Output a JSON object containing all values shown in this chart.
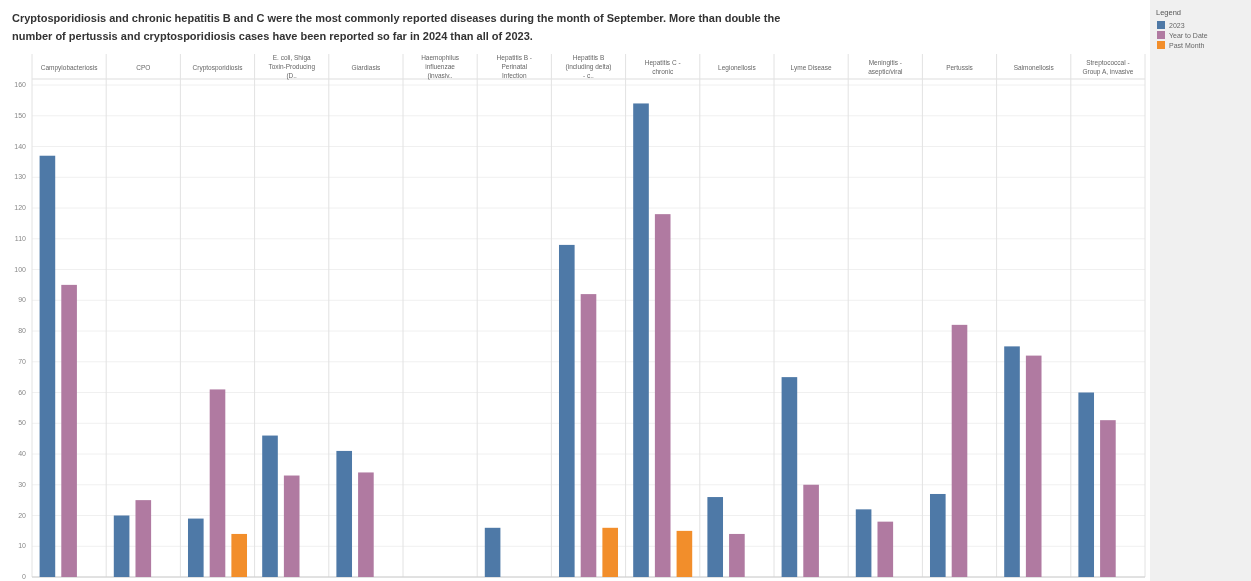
{
  "chart_data": {
    "type": "bar",
    "title": "Cryptosporidiosis and chronic hepatitis B and C were the most commonly reported diseases during the month of September. More than double the number of pertussis and cryptosporidiosis cases have been reported so far in 2024 than all of 2023.",
    "categories": [
      "Campylobacteriosis",
      "CPO",
      "Cryptosporidiosis",
      "E. coli, Shiga Toxin-Producing (D..",
      "Giardiasis",
      "Haemophilus influenzae (invasiv..",
      "Hepatitis B - Perinatal Infection",
      "Hepatitis B (including delta) - c..",
      "Hepatitis C - chronic",
      "Legionellosis",
      "Lyme Disease",
      "Meningitis - aseptic/viral",
      "Pertussis",
      "Salmonellosis",
      "Streptococcal - Group A, invasive"
    ],
    "series": [
      {
        "name": "2023",
        "color": "#4e79a7",
        "values": [
          137,
          20,
          19,
          46,
          41,
          null,
          16,
          108,
          154,
          26,
          65,
          22,
          27,
          75,
          60
        ]
      },
      {
        "name": "Year to Date",
        "color": "#b07aa1",
        "values": [
          95,
          25,
          61,
          33,
          34,
          null,
          null,
          92,
          118,
          14,
          30,
          18,
          82,
          72,
          51
        ]
      },
      {
        "name": "Past Month",
        "color": "#f28e2b",
        "values": [
          null,
          null,
          14,
          null,
          null,
          null,
          null,
          16,
          15,
          null,
          null,
          null,
          null,
          null,
          null
        ]
      }
    ],
    "legend_title": "Legend",
    "legend": "top right",
    "ylim": [
      0,
      160
    ],
    "yticks": [
      0,
      10,
      20,
      30,
      40,
      50,
      60,
      70,
      80,
      90,
      100,
      110,
      120,
      130,
      140,
      150,
      160
    ],
    "grid": "y"
  }
}
